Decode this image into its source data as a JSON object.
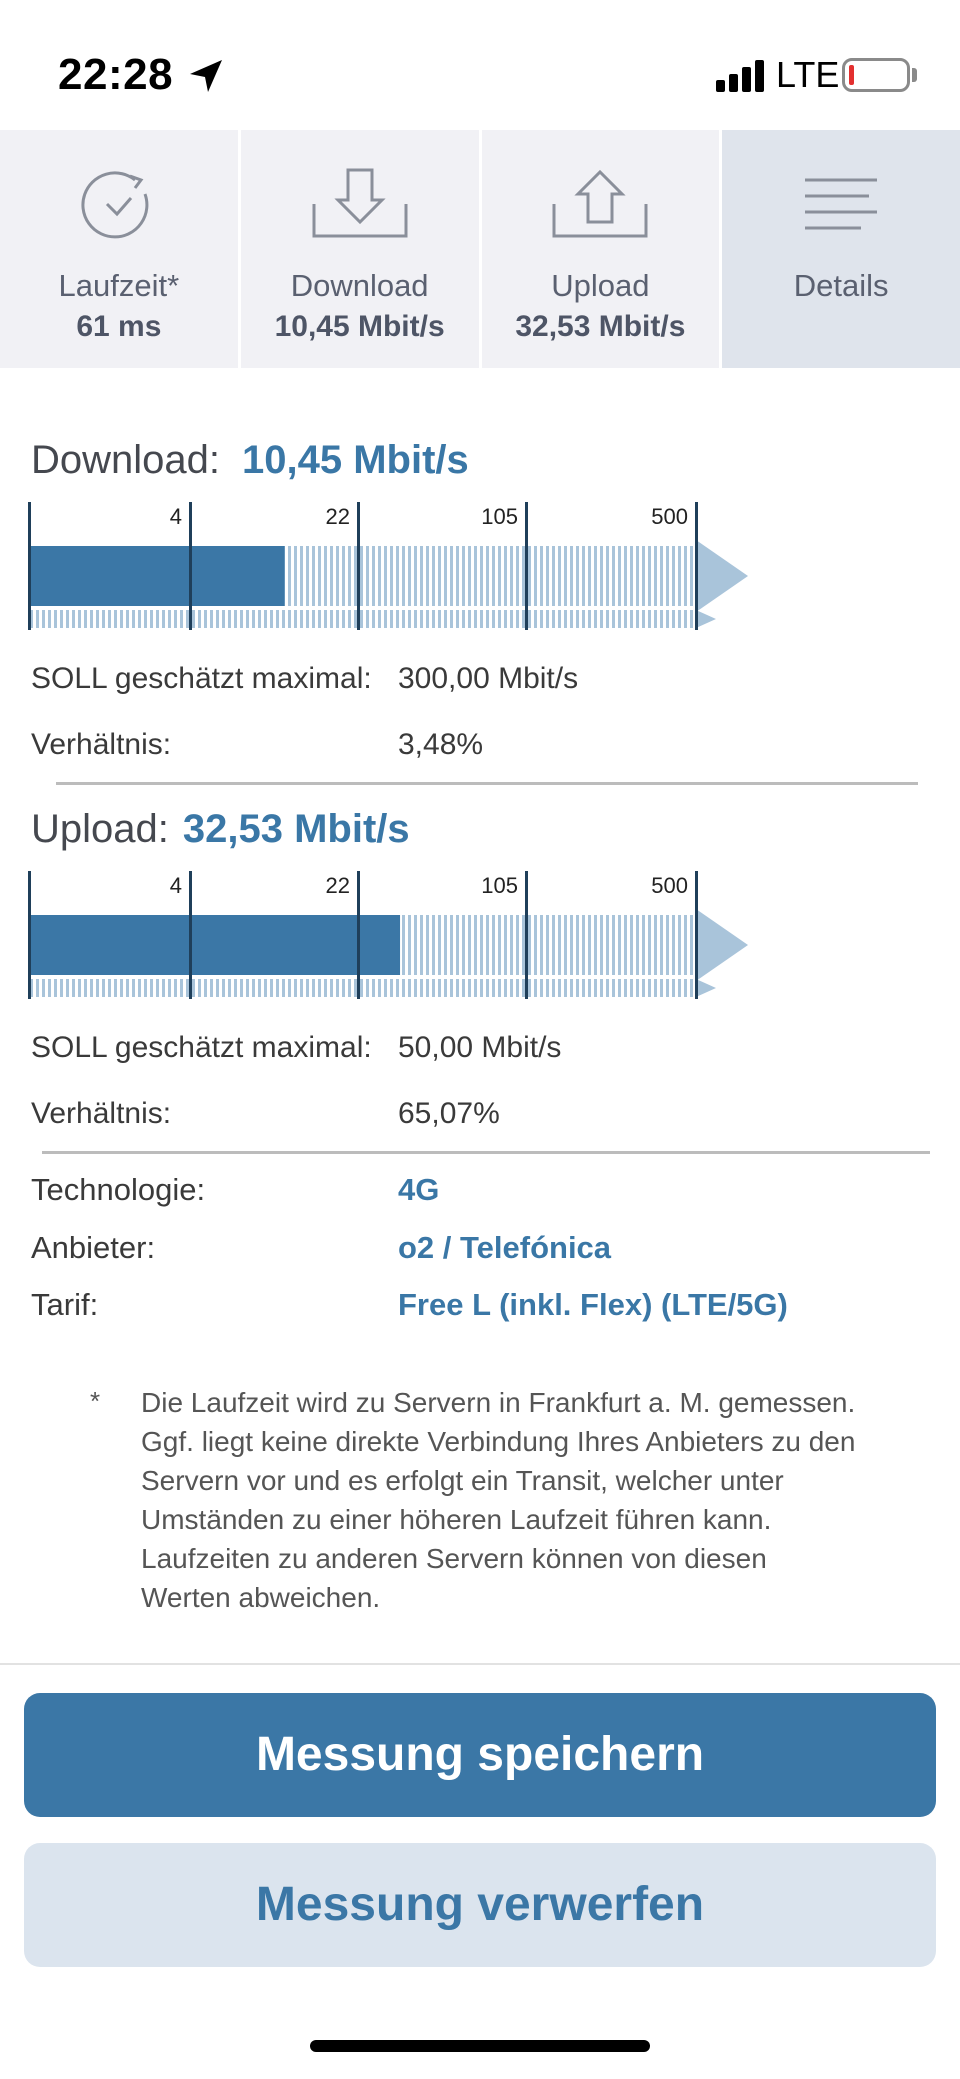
{
  "status_bar": {
    "time": "22:28",
    "network": "LTE"
  },
  "tabs": [
    {
      "label": "Laufzeit*",
      "value": "61 ms",
      "icon": "clock-check-icon"
    },
    {
      "label": "Download",
      "value": "10,45 Mbit/s",
      "icon": "download-tray-icon"
    },
    {
      "label": "Upload",
      "value": "32,53 Mbit/s",
      "icon": "upload-tray-icon"
    },
    {
      "label": "Details",
      "value": "",
      "icon": "menu-lines-icon"
    }
  ],
  "download": {
    "title": "Download:",
    "value": "10,45 Mbit/s",
    "scale_labels": [
      "4",
      "22",
      "105",
      "500"
    ],
    "bar_fill_mbit": 10.45,
    "soll_label": "SOLL geschätzt maximal:",
    "soll_value": "300,00 Mbit/s",
    "ratio_label": "Verhältnis:",
    "ratio_value": "3,48%"
  },
  "upload": {
    "title": "Upload:",
    "value": "32,53 Mbit/s",
    "scale_labels": [
      "4",
      "22",
      "105",
      "500"
    ],
    "bar_fill_mbit": 32.53,
    "soll_label": "SOLL geschätzt maximal:",
    "soll_value": "50,00 Mbit/s",
    "ratio_label": "Verhältnis:",
    "ratio_value": "65,07%"
  },
  "info": {
    "technology_label": "Technologie:",
    "technology_value": "4G",
    "provider_label": "Anbieter:",
    "provider_value": "o2 / Telefónica",
    "tariff_label": "Tarif:",
    "tariff_value": "Free L (inkl. Flex) (LTE/5G)"
  },
  "footnote": {
    "star": "*",
    "text": "Die Laufzeit wird zu Servern in Frankfurt a. M. gemessen. Ggf. liegt keine direkte Verbindung Ihres Anbieters zu den Servern vor und es erfolgt ein Transit, welcher unter Umständen zu einer höheren Laufzeit führen kann. Laufzeiten zu anderen Servern können von diesen Werten abweichen."
  },
  "buttons": {
    "save": "Messung speichern",
    "discard": "Messung verwerfen"
  },
  "colors": {
    "accent": "#3b77a6",
    "light_accent": "#a9c4da",
    "tab_bg": "#f1f1f5",
    "tab_active_bg": "#dfe4ec"
  }
}
